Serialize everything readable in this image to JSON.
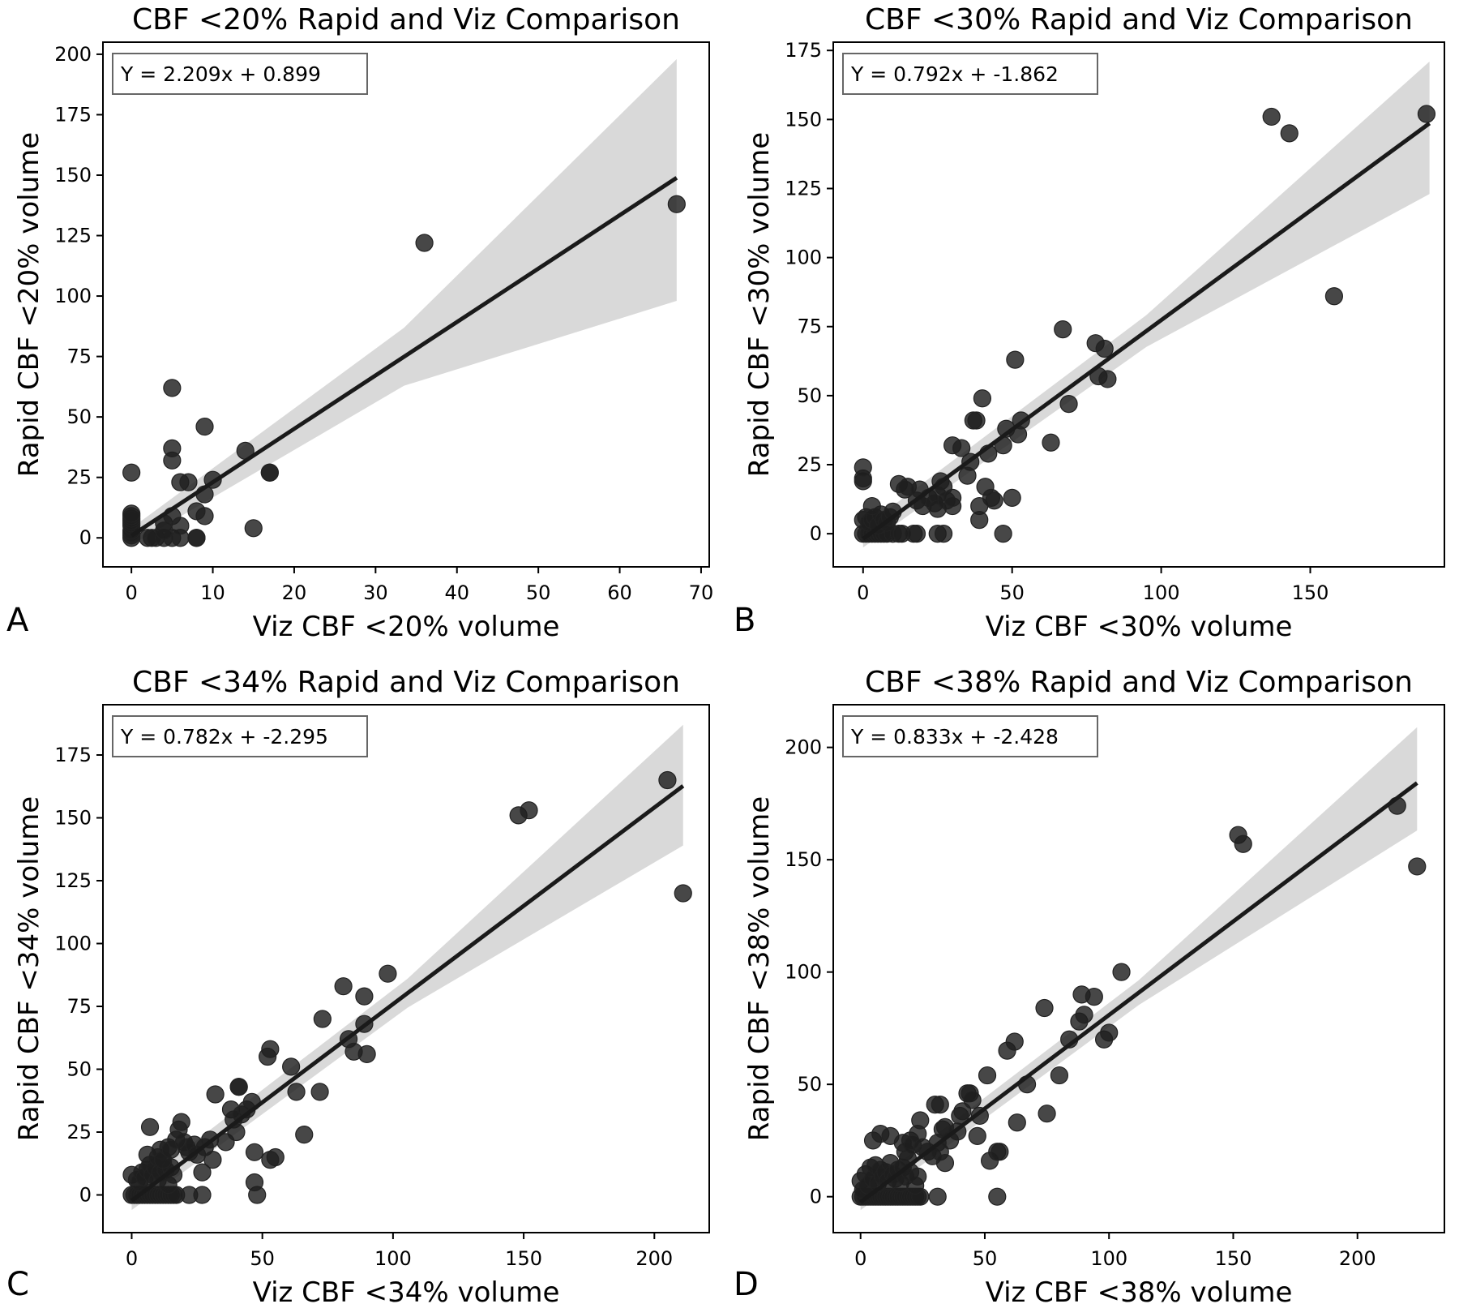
{
  "figure": {
    "panel_letters": [
      "A",
      "B",
      "C",
      "D"
    ]
  },
  "chart_data": [
    {
      "type": "scatter",
      "panel": "A",
      "title": "CBF <20% Rapid and Viz Comparison",
      "xlabel": "Viz CBF <20% volume",
      "ylabel": "Rapid CBF <20% volume",
      "equation": "Y = 2.209x + 0.899",
      "regression": {
        "slope": 2.209,
        "intercept": 0.899,
        "x_range": [
          0,
          67
        ]
      },
      "ci_band": {
        "x": [
          0,
          67
        ],
        "lower_at_end": 98,
        "upper_at_end": 198,
        "lower_at_start": -3,
        "upper_at_start": 4
      },
      "xlim": [
        -3.5,
        71
      ],
      "ylim": [
        -12,
        205
      ],
      "xticks": [
        0,
        10,
        20,
        30,
        40,
        50,
        60,
        70
      ],
      "yticks": [
        0,
        25,
        50,
        75,
        100,
        125,
        150,
        175,
        200
      ],
      "grid": false,
      "points": [
        [
          0,
          0
        ],
        [
          0,
          1
        ],
        [
          0,
          2
        ],
        [
          0,
          3
        ],
        [
          0,
          5
        ],
        [
          0,
          6
        ],
        [
          0,
          7
        ],
        [
          0,
          8
        ],
        [
          0,
          9
        ],
        [
          0,
          10
        ],
        [
          0,
          27
        ],
        [
          2,
          0
        ],
        [
          2.5,
          0
        ],
        [
          3,
          0
        ],
        [
          4,
          0
        ],
        [
          5,
          0
        ],
        [
          6,
          0
        ],
        [
          8,
          0
        ],
        [
          8,
          0
        ],
        [
          4,
          6
        ],
        [
          5,
          9
        ],
        [
          6,
          5
        ],
        [
          4,
          3
        ],
        [
          5,
          32
        ],
        [
          5,
          37
        ],
        [
          5,
          62
        ],
        [
          6,
          23
        ],
        [
          7,
          23
        ],
        [
          9,
          46
        ],
        [
          9,
          9
        ],
        [
          8,
          11
        ],
        [
          9,
          18
        ],
        [
          10,
          24
        ],
        [
          14,
          36
        ],
        [
          15,
          4
        ],
        [
          17,
          27
        ],
        [
          17,
          27
        ],
        [
          36,
          122
        ],
        [
          67,
          138
        ]
      ]
    },
    {
      "type": "scatter",
      "panel": "B",
      "title": "CBF <30% Rapid and Viz Comparison",
      "xlabel": "Viz CBF <30% volume",
      "ylabel": "Rapid CBF <30% volume",
      "equation": "Y = 0.792x + -1.862",
      "regression": {
        "slope": 0.792,
        "intercept": -1.862,
        "x_range": [
          0,
          190
        ]
      },
      "ci_band": {
        "x": [
          0,
          190
        ],
        "lower_at_end": 123,
        "upper_at_end": 171,
        "lower_at_start": -5,
        "upper_at_start": 2
      },
      "xlim": [
        -10,
        195
      ],
      "ylim": [
        -12,
        178
      ],
      "xticks": [
        0,
        50,
        100,
        150
      ],
      "yticks": [
        0,
        25,
        50,
        75,
        100,
        125,
        150,
        175
      ],
      "grid": false,
      "points": [
        [
          0,
          0
        ],
        [
          1,
          0
        ],
        [
          2,
          0
        ],
        [
          3,
          0
        ],
        [
          4,
          0
        ],
        [
          5,
          0
        ],
        [
          6,
          0
        ],
        [
          7,
          0
        ],
        [
          8,
          0
        ],
        [
          10,
          0
        ],
        [
          12,
          0
        ],
        [
          13,
          0
        ],
        [
          17,
          0
        ],
        [
          18,
          0
        ],
        [
          25,
          0
        ],
        [
          27,
          0
        ],
        [
          47,
          0
        ],
        [
          0,
          5
        ],
        [
          1,
          6
        ],
        [
          2,
          4
        ],
        [
          3,
          5
        ],
        [
          4,
          6
        ],
        [
          5,
          3
        ],
        [
          6,
          7
        ],
        [
          7,
          5
        ],
        [
          8,
          4
        ],
        [
          9,
          6
        ],
        [
          10,
          8
        ],
        [
          0,
          19
        ],
        [
          0,
          20
        ],
        [
          0,
          24
        ],
        [
          3,
          10
        ],
        [
          12,
          18
        ],
        [
          14,
          16
        ],
        [
          15,
          17
        ],
        [
          18,
          12
        ],
        [
          19,
          16
        ],
        [
          20,
          10
        ],
        [
          22,
          13
        ],
        [
          24,
          11
        ],
        [
          25,
          14
        ],
        [
          25,
          9
        ],
        [
          26,
          19
        ],
        [
          27,
          17
        ],
        [
          28,
          12
        ],
        [
          30,
          10
        ],
        [
          30,
          13
        ],
        [
          30,
          32
        ],
        [
          33,
          31
        ],
        [
          36,
          26
        ],
        [
          35,
          21
        ],
        [
          37,
          41
        ],
        [
          38,
          41
        ],
        [
          39,
          10
        ],
        [
          39,
          5
        ],
        [
          40,
          49
        ],
        [
          41,
          17
        ],
        [
          42,
          29
        ],
        [
          43,
          13
        ],
        [
          44,
          12
        ],
        [
          47,
          32
        ],
        [
          48,
          38
        ],
        [
          50,
          13
        ],
        [
          51,
          63
        ],
        [
          52,
          36
        ],
        [
          53,
          41
        ],
        [
          63,
          33
        ],
        [
          67,
          74
        ],
        [
          69,
          47
        ],
        [
          78,
          69
        ],
        [
          79,
          57
        ],
        [
          81,
          67
        ],
        [
          82,
          56
        ],
        [
          137,
          151
        ],
        [
          143,
          145
        ],
        [
          158,
          86
        ],
        [
          189,
          152
        ]
      ]
    },
    {
      "type": "scatter",
      "panel": "C",
      "title": "CBF <34% Rapid and Viz Comparison",
      "xlabel": "Viz CBF <34% volume",
      "ylabel": "Rapid CBF <34% volume",
      "equation": "Y = 0.782x + -2.295",
      "regression": {
        "slope": 0.782,
        "intercept": -2.295,
        "x_range": [
          0,
          211
        ]
      },
      "ci_band": {
        "x": [
          0,
          211
        ],
        "lower_at_end": 139,
        "upper_at_end": 187,
        "lower_at_start": -6,
        "upper_at_start": 2
      },
      "xlim": [
        -11,
        221
      ],
      "ylim": [
        -15,
        195
      ],
      "xticks": [
        0,
        50,
        100,
        150,
        200
      ],
      "yticks": [
        0,
        25,
        50,
        75,
        100,
        125,
        150,
        175
      ],
      "grid": false,
      "points": [
        [
          0,
          0
        ],
        [
          1,
          0
        ],
        [
          2,
          0
        ],
        [
          3,
          0
        ],
        [
          4,
          0
        ],
        [
          5,
          0
        ],
        [
          6,
          0
        ],
        [
          7,
          0
        ],
        [
          8,
          0
        ],
        [
          9,
          0
        ],
        [
          10,
          0
        ],
        [
          11,
          0
        ],
        [
          12,
          0
        ],
        [
          13,
          0
        ],
        [
          14,
          0
        ],
        [
          15,
          0
        ],
        [
          16,
          0
        ],
        [
          17,
          0
        ],
        [
          22,
          0
        ],
        [
          27,
          0
        ],
        [
          48,
          0
        ],
        [
          0,
          8
        ],
        [
          2,
          6
        ],
        [
          3,
          5
        ],
        [
          4,
          9
        ],
        [
          5,
          7
        ],
        [
          6,
          10
        ],
        [
          7,
          12
        ],
        [
          8,
          8
        ],
        [
          9,
          11
        ],
        [
          10,
          6
        ],
        [
          11,
          9
        ],
        [
          12,
          13
        ],
        [
          13,
          10
        ],
        [
          14,
          4
        ],
        [
          15,
          11
        ],
        [
          16,
          8
        ],
        [
          6,
          16
        ],
        [
          7,
          27
        ],
        [
          10,
          15
        ],
        [
          11,
          18
        ],
        [
          12,
          14
        ],
        [
          14,
          19
        ],
        [
          15,
          18
        ],
        [
          17,
          22
        ],
        [
          18,
          26
        ],
        [
          19,
          29
        ],
        [
          20,
          21
        ],
        [
          21,
          19
        ],
        [
          22,
          17
        ],
        [
          24,
          20
        ],
        [
          25,
          16
        ],
        [
          27,
          9
        ],
        [
          28,
          19
        ],
        [
          30,
          22
        ],
        [
          31,
          14
        ],
        [
          32,
          40
        ],
        [
          36,
          21
        ],
        [
          38,
          34
        ],
        [
          39,
          30
        ],
        [
          40,
          25
        ],
        [
          41,
          43
        ],
        [
          41,
          43
        ],
        [
          42,
          32
        ],
        [
          44,
          34
        ],
        [
          46,
          37
        ],
        [
          47,
          17
        ],
        [
          47,
          5
        ],
        [
          52,
          55
        ],
        [
          53,
          58
        ],
        [
          55,
          15
        ],
        [
          53,
          14
        ],
        [
          61,
          51
        ],
        [
          63,
          41
        ],
        [
          66,
          24
        ],
        [
          72,
          41
        ],
        [
          73,
          70
        ],
        [
          81,
          83
        ],
        [
          83,
          62
        ],
        [
          85,
          57
        ],
        [
          89,
          79
        ],
        [
          89,
          68
        ],
        [
          90,
          56
        ],
        [
          98,
          88
        ],
        [
          148,
          151
        ],
        [
          152,
          153
        ],
        [
          205,
          165
        ],
        [
          211,
          120
        ]
      ]
    },
    {
      "type": "scatter",
      "panel": "D",
      "title": "CBF <38% Rapid and Viz Comparison",
      "xlabel": "Viz CBF <38% volume",
      "ylabel": "Rapid CBF <38% volume",
      "equation": "Y = 0.833x + -2.428",
      "regression": {
        "slope": 0.833,
        "intercept": -2.428,
        "x_range": [
          0,
          224
        ]
      },
      "ci_band": {
        "x": [
          0,
          224
        ],
        "lower_at_end": 163,
        "upper_at_end": 209,
        "lower_at_start": -6,
        "upper_at_start": 2
      },
      "xlim": [
        -11,
        235
      ],
      "ylim": [
        -16,
        219
      ],
      "xticks": [
        0,
        50,
        100,
        150,
        200
      ],
      "yticks": [
        0,
        50,
        100,
        150,
        200
      ],
      "grid": false,
      "points": [
        [
          0,
          0
        ],
        [
          1,
          0
        ],
        [
          2,
          0
        ],
        [
          3,
          0
        ],
        [
          4,
          0
        ],
        [
          5,
          0
        ],
        [
          6,
          0
        ],
        [
          7,
          0
        ],
        [
          8,
          0
        ],
        [
          9,
          0
        ],
        [
          10,
          0
        ],
        [
          11,
          0
        ],
        [
          12,
          0
        ],
        [
          13,
          0
        ],
        [
          14,
          0
        ],
        [
          15,
          0
        ],
        [
          16,
          0
        ],
        [
          17,
          0
        ],
        [
          18,
          0
        ],
        [
          19,
          0
        ],
        [
          20,
          0
        ],
        [
          21,
          0
        ],
        [
          22,
          0
        ],
        [
          23,
          0
        ],
        [
          24,
          0
        ],
        [
          31,
          0
        ],
        [
          55,
          0
        ],
        [
          0,
          7
        ],
        [
          1,
          3
        ],
        [
          2,
          10
        ],
        [
          3,
          5
        ],
        [
          4,
          13
        ],
        [
          5,
          8
        ],
        [
          6,
          14
        ],
        [
          7,
          6
        ],
        [
          8,
          12
        ],
        [
          9,
          9
        ],
        [
          10,
          11
        ],
        [
          11,
          7
        ],
        [
          12,
          15
        ],
        [
          13,
          10
        ],
        [
          14,
          8
        ],
        [
          15,
          12
        ],
        [
          16,
          6
        ],
        [
          17,
          13
        ],
        [
          18,
          9
        ],
        [
          20,
          11
        ],
        [
          22,
          5
        ],
        [
          23,
          9
        ],
        [
          5,
          25
        ],
        [
          8,
          28
        ],
        [
          12,
          27
        ],
        [
          17,
          24
        ],
        [
          18,
          20
        ],
        [
          19,
          17
        ],
        [
          20,
          25
        ],
        [
          21,
          23
        ],
        [
          23,
          28
        ],
        [
          24,
          34
        ],
        [
          25,
          22
        ],
        [
          27,
          20
        ],
        [
          29,
          18
        ],
        [
          30,
          41
        ],
        [
          31,
          24
        ],
        [
          32,
          20
        ],
        [
          32,
          41
        ],
        [
          33,
          30
        ],
        [
          34,
          31
        ],
        [
          34,
          15
        ],
        [
          36,
          25
        ],
        [
          39,
          29
        ],
        [
          40,
          36
        ],
        [
          41,
          38
        ],
        [
          43,
          46
        ],
        [
          44,
          46
        ],
        [
          45,
          43
        ],
        [
          47,
          27
        ],
        [
          48,
          36
        ],
        [
          51,
          54
        ],
        [
          52,
          16
        ],
        [
          55,
          20
        ],
        [
          56,
          20
        ],
        [
          59,
          65
        ],
        [
          62,
          69
        ],
        [
          63,
          33
        ],
        [
          67,
          50
        ],
        [
          74,
          84
        ],
        [
          75,
          37
        ],
        [
          80,
          54
        ],
        [
          84,
          70
        ],
        [
          88,
          78
        ],
        [
          89,
          90
        ],
        [
          90,
          81
        ],
        [
          94,
          89
        ],
        [
          98,
          70
        ],
        [
          100,
          73
        ],
        [
          105,
          100
        ],
        [
          152,
          161
        ],
        [
          154,
          157
        ],
        [
          216,
          174
        ],
        [
          224,
          147
        ]
      ]
    }
  ]
}
